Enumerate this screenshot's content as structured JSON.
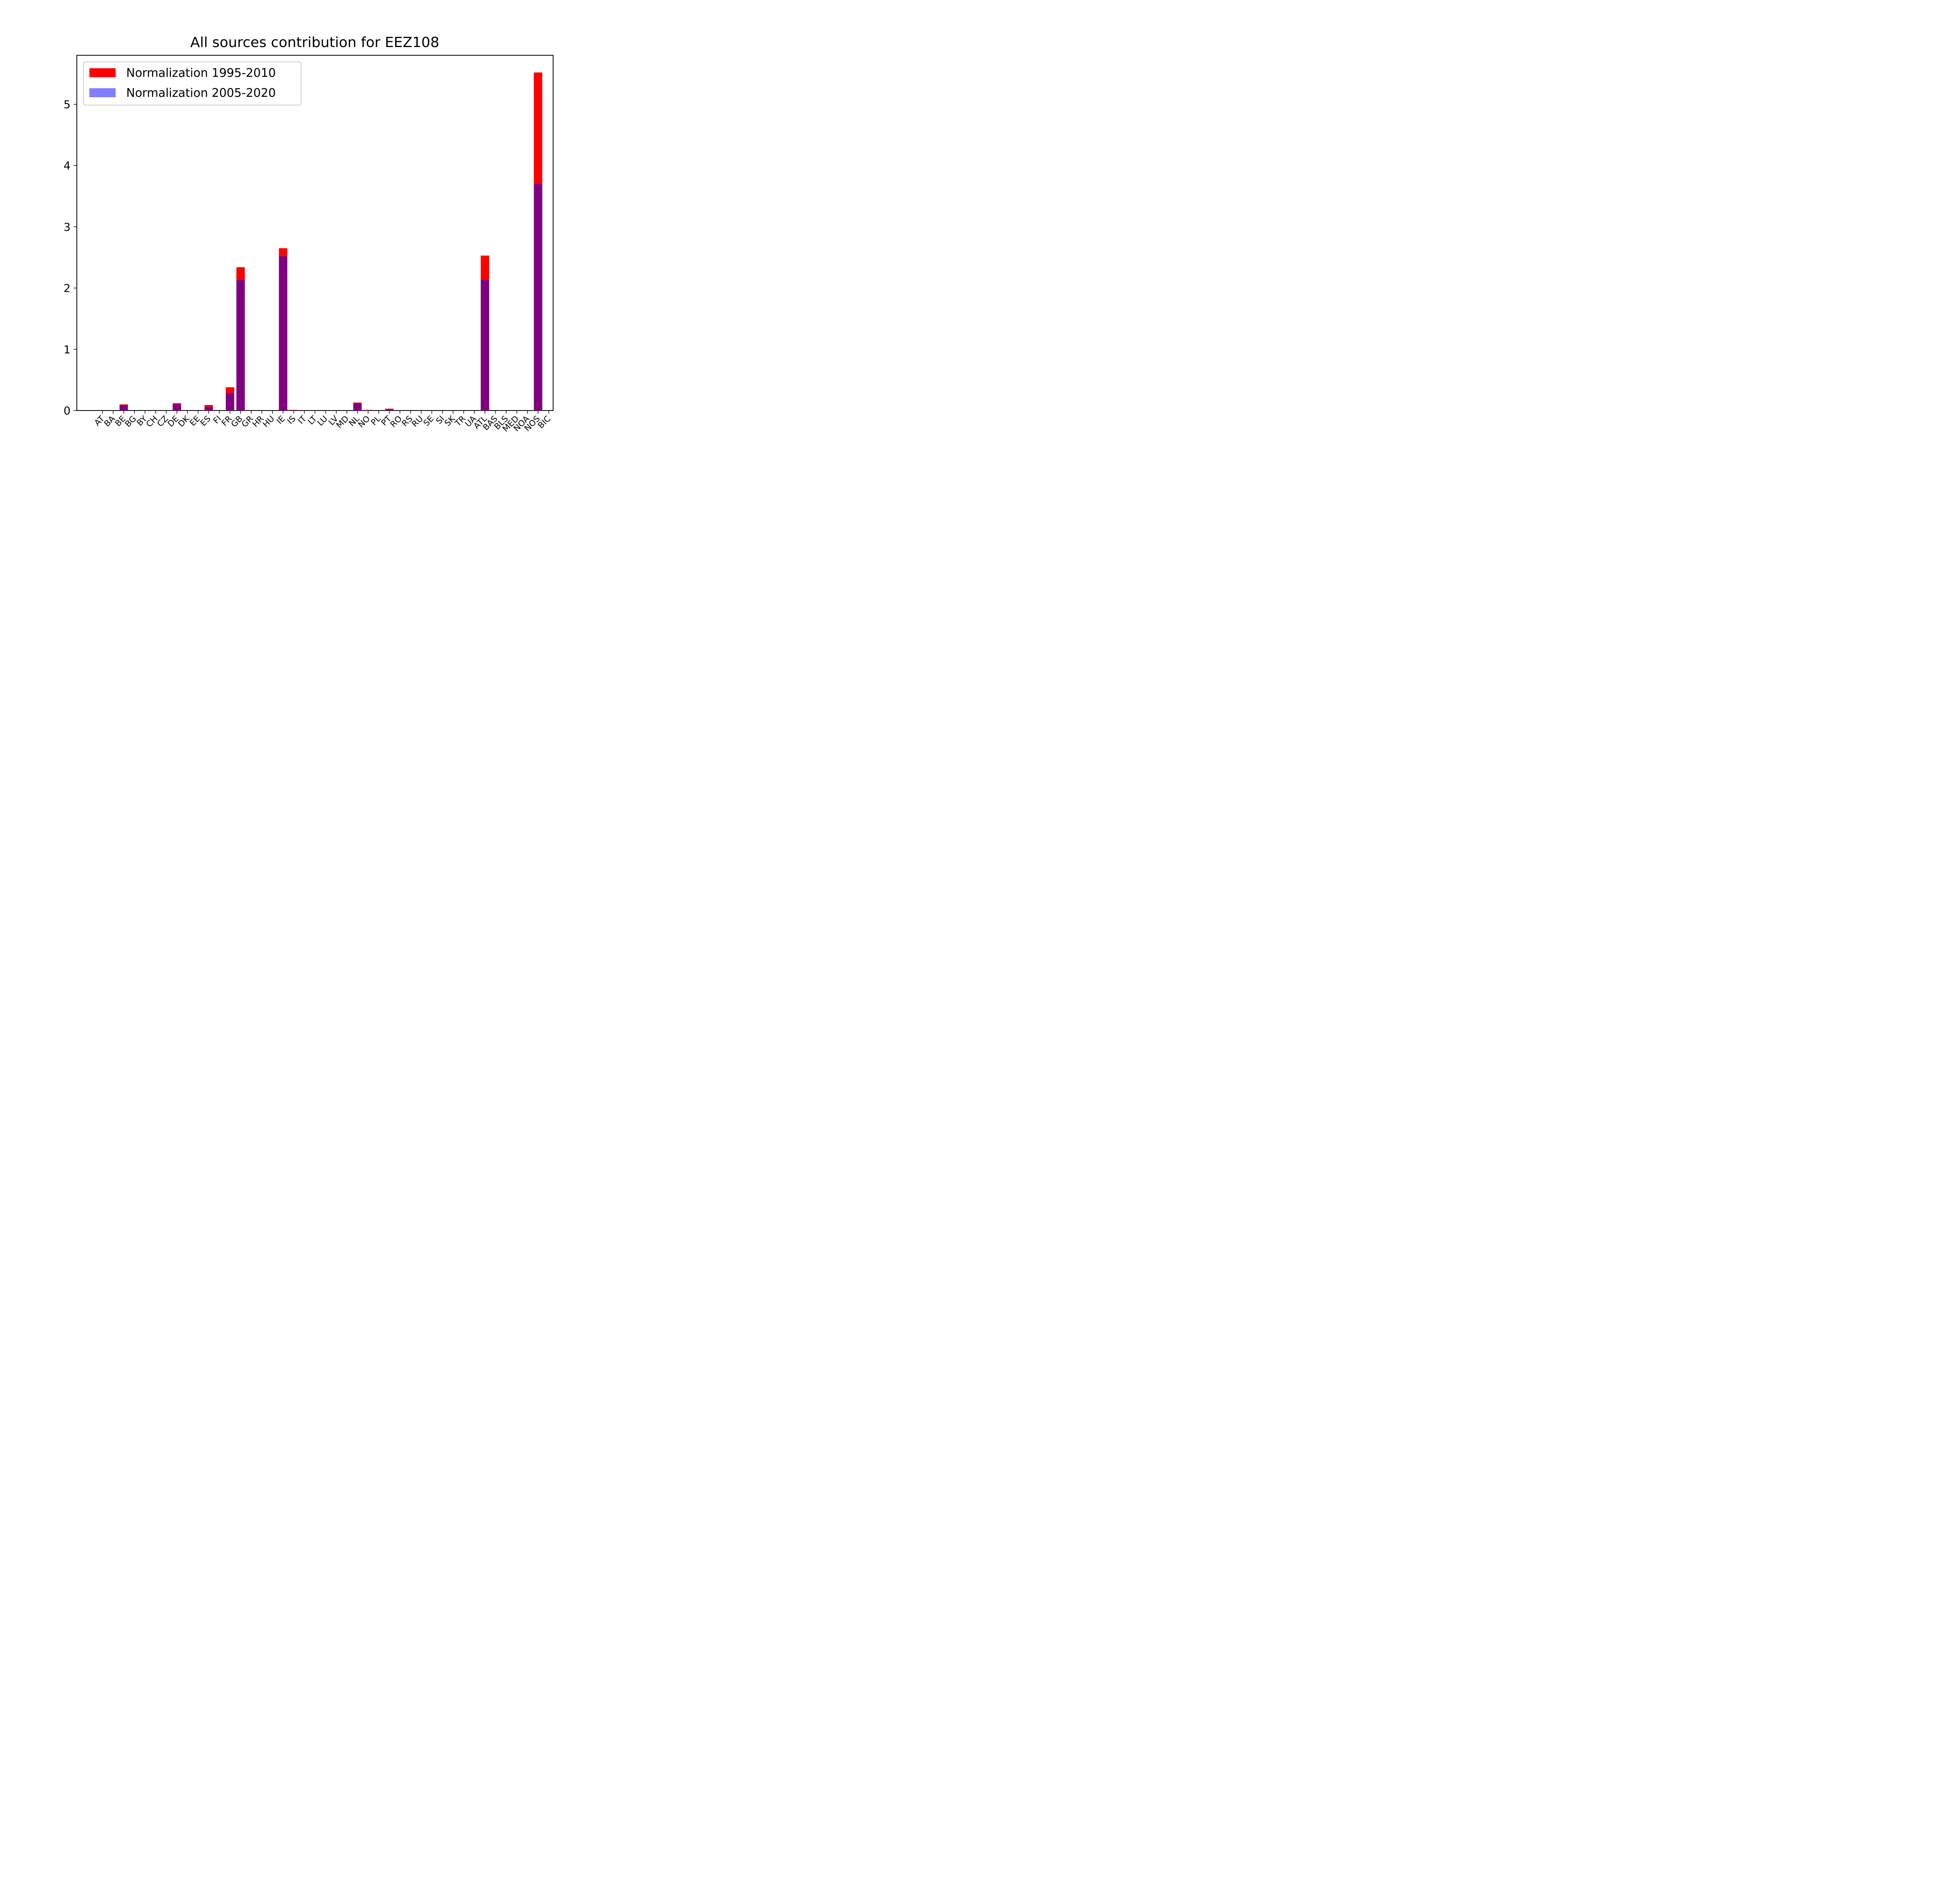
{
  "chart_data": {
    "type": "bar",
    "title": "All sources contribution for EEZ108",
    "xlabel": "",
    "ylabel": "",
    "ylim": [
      0,
      5.8
    ],
    "yticks": [
      0,
      1,
      2,
      3,
      4,
      5
    ],
    "grid": false,
    "legend_position": "top-left",
    "categories": [
      "AT",
      "BA",
      "BE",
      "BG",
      "BY",
      "CH",
      "CZ",
      "DE",
      "DK",
      "EE",
      "ES",
      "FI",
      "FR",
      "GB",
      "GR",
      "HR",
      "HU",
      "IE",
      "IS",
      "IT",
      "LT",
      "LU",
      "LV",
      "MD",
      "NL",
      "NO",
      "PL",
      "PT",
      "RO",
      "RS",
      "RU",
      "SE",
      "SI",
      "SK",
      "TR",
      "UA",
      "ATL",
      "BAS",
      "BLS",
      "MED",
      "NOA",
      "NOS",
      "BIC"
    ],
    "series": [
      {
        "name": "Normalization 1995-2010",
        "color": "#ff0000",
        "values": [
          0,
          0,
          0.1,
          0,
          0,
          0,
          0,
          0.12,
          0,
          0,
          0.09,
          0,
          0.38,
          2.34,
          0,
          0,
          0,
          2.65,
          0.01,
          0,
          0,
          0,
          0,
          0,
          0.13,
          0.01,
          0,
          0.03,
          0,
          0,
          0,
          0,
          0,
          0,
          0,
          0,
          2.53,
          0,
          0,
          0,
          0,
          5.52,
          0
        ]
      },
      {
        "name": "Normalization 2005-2020",
        "color": "#8080ff",
        "values": [
          0,
          0,
          0.09,
          0,
          0,
          0,
          0,
          0.1,
          0,
          0,
          0.06,
          0,
          0.29,
          2.14,
          0,
          0,
          0,
          2.52,
          0.005,
          0,
          0,
          0,
          0,
          0,
          0.12,
          0.005,
          0,
          0.02,
          0,
          0,
          0,
          0,
          0,
          0,
          0,
          0,
          2.14,
          0,
          0,
          0,
          0,
          3.7,
          0
        ]
      }
    ],
    "overlap_color": "#800080"
  }
}
